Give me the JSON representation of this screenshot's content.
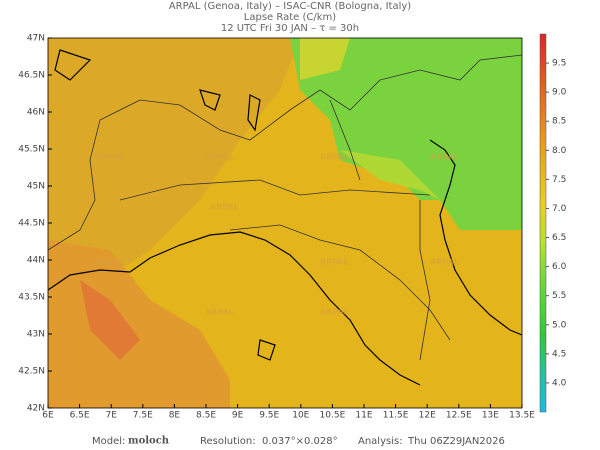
{
  "header": {
    "line1": "ARPAL (Genoa, Italy)  –  ISAC-CNR (Bologna, Italy)",
    "line2": "Lapse Rate (C/km)",
    "line3": "12 UTC Fri 30 JAN  –  τ = 30h"
  },
  "map": {
    "xlim": [
      6,
      13.5
    ],
    "ylim": [
      42,
      47
    ],
    "xticks": [
      {
        "value": 6,
        "label": "6E"
      },
      {
        "value": 6.5,
        "label": "6.5E"
      },
      {
        "value": 7,
        "label": "7E"
      },
      {
        "value": 7.5,
        "label": "7.5E"
      },
      {
        "value": 8,
        "label": "8E"
      },
      {
        "value": 8.5,
        "label": "8.5E"
      },
      {
        "value": 9,
        "label": "9E"
      },
      {
        "value": 9.5,
        "label": "9.5E"
      },
      {
        "value": 10,
        "label": "10E"
      },
      {
        "value": 10.5,
        "label": "10.5E"
      },
      {
        "value": 11,
        "label": "11E"
      },
      {
        "value": 11.5,
        "label": "11.5E"
      },
      {
        "value": 12,
        "label": "12E"
      },
      {
        "value": 12.5,
        "label": "12.5E"
      },
      {
        "value": 13,
        "label": "13E"
      },
      {
        "value": 13.5,
        "label": "13.5E"
      }
    ],
    "yticks": [
      {
        "value": 42,
        "label": "42N"
      },
      {
        "value": 42.5,
        "label": "42.5N"
      },
      {
        "value": 43,
        "label": "43N"
      },
      {
        "value": 43.5,
        "label": "43.5N"
      },
      {
        "value": 44,
        "label": "44N"
      },
      {
        "value": 44.5,
        "label": "44.5N"
      },
      {
        "value": 45,
        "label": "45N"
      },
      {
        "value": 45.5,
        "label": "45.5N"
      },
      {
        "value": 46,
        "label": "46N"
      },
      {
        "value": 46.5,
        "label": "46.5N"
      },
      {
        "value": 47,
        "label": "47N"
      }
    ],
    "watermark": "ARPAL"
  },
  "colorbar": {
    "lim": [
      3.5,
      10
    ],
    "ticks": [
      {
        "value": 4,
        "label": "4.0"
      },
      4.5,
      {
        "value": 5,
        "label": "5.0"
      },
      5.5,
      {
        "value": 6,
        "label": "6.0"
      },
      6.5,
      {
        "value": 7,
        "label": "7.0"
      },
      7.5,
      {
        "value": 8,
        "label": "8.0"
      },
      8.5,
      {
        "value": 9,
        "label": "9.0"
      },
      9.5
    ]
  },
  "footer": {
    "model_label": "Model:",
    "model": "moloch",
    "resolution_label": "Resolution:",
    "resolution": "0.037°×0.028°",
    "analysis_label": "Analysis:",
    "analysis": "Thu 06Z29JAN2026"
  }
}
